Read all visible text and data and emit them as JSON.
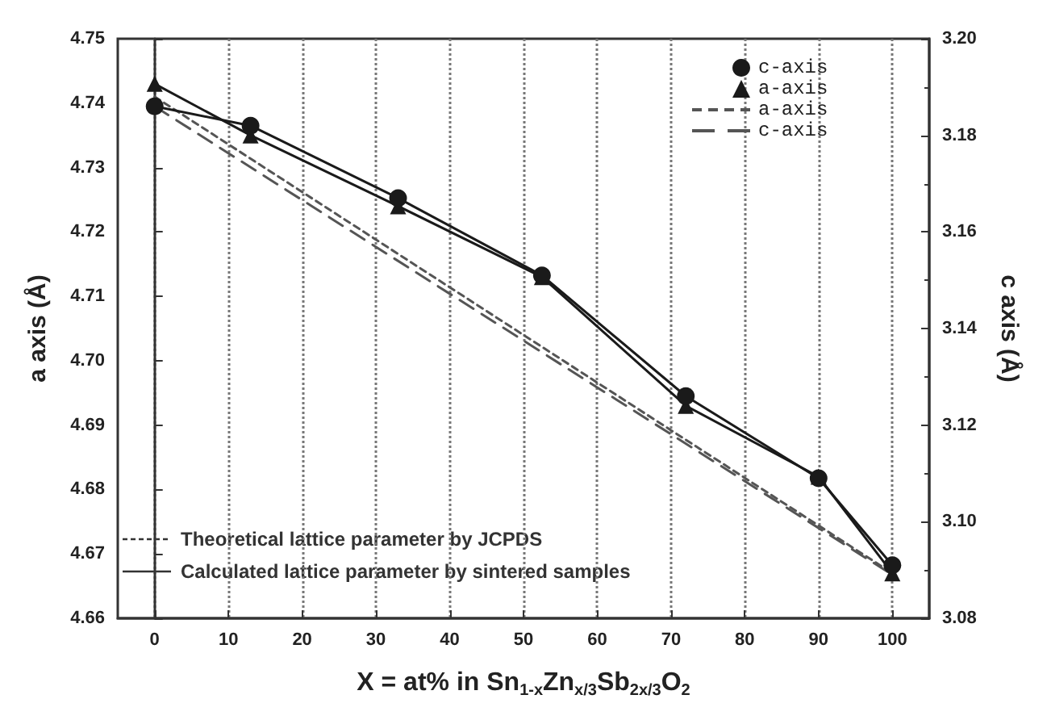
{
  "chart_data": {
    "type": "line",
    "xlabel": "X = at% in Sn$_{1-x}$Zn$_{x/3}$Sb$_{2x/3}$O$_{2}$",
    "ylabel": "a axis (Å)",
    "y2label": "c axis (Å)",
    "xlim": [
      -5,
      105
    ],
    "xticks": [
      0,
      10,
      20,
      30,
      40,
      50,
      60,
      70,
      80,
      90,
      100
    ],
    "ylim": [
      4.66,
      4.75
    ],
    "yticks": [
      {
        "value": 4.66,
        "label": "4.66"
      },
      {
        "value": 4.67,
        "label": "4.67"
      },
      {
        "value": 4.68,
        "label": "4.68"
      },
      {
        "value": 4.69,
        "label": "4.69"
      },
      {
        "value": 4.7,
        "label": "4.70"
      },
      {
        "value": 4.71,
        "label": "4.71"
      },
      {
        "value": 4.72,
        "label": "4.72"
      },
      {
        "value": 4.73,
        "label": "4.73"
      },
      {
        "value": 4.74,
        "label": "4.74"
      },
      {
        "value": 4.75,
        "label": "4.75"
      }
    ],
    "y2lim": [
      3.08,
      3.2
    ],
    "y2ticks": [
      {
        "value": 3.08,
        "label": "3.08"
      },
      {
        "value": 3.1,
        "label": "3.10"
      },
      {
        "value": 3.12,
        "label": "3.12"
      },
      {
        "value": 3.14,
        "label": "3.14"
      },
      {
        "value": 3.16,
        "label": "3.16"
      },
      {
        "value": 3.18,
        "label": "3.18"
      },
      {
        "value": 3.2,
        "label": "3.20"
      }
    ],
    "grid": "x",
    "legend": "top right",
    "series": [
      {
        "name": "c-axis",
        "axis": "y2",
        "marker": "circle",
        "line_style": "solid",
        "color": "#1a1a1a",
        "x": [
          0,
          13,
          33,
          52.5,
          72,
          90,
          100
        ],
        "values": [
          3.186,
          3.182,
          3.167,
          3.151,
          3.126,
          3.109,
          3.091
        ]
      },
      {
        "name": "a-axis",
        "axis": "y",
        "marker": "triangle",
        "line_style": "solid",
        "color": "#1a1a1a",
        "x": [
          0,
          13,
          33,
          52.5,
          72,
          90,
          100
        ],
        "values": [
          4.743,
          4.735,
          4.724,
          4.713,
          4.693,
          4.682,
          4.667
        ]
      },
      {
        "name": "a-axis",
        "axis": "y",
        "marker": "none",
        "line_style": "dashed",
        "color": "#555555",
        "x": [
          0,
          100
        ],
        "values": [
          4.741,
          4.667
        ]
      },
      {
        "name": "c-axis",
        "axis": "y2",
        "marker": "none",
        "line_style": "dashed",
        "color": "#555555",
        "x": [
          0,
          100
        ],
        "values": [
          3.186,
          3.089
        ]
      }
    ],
    "annotations": [
      "Theoretical lattice parameter by JCPDS",
      "Calculated lattice parameter by sintered samples"
    ]
  }
}
